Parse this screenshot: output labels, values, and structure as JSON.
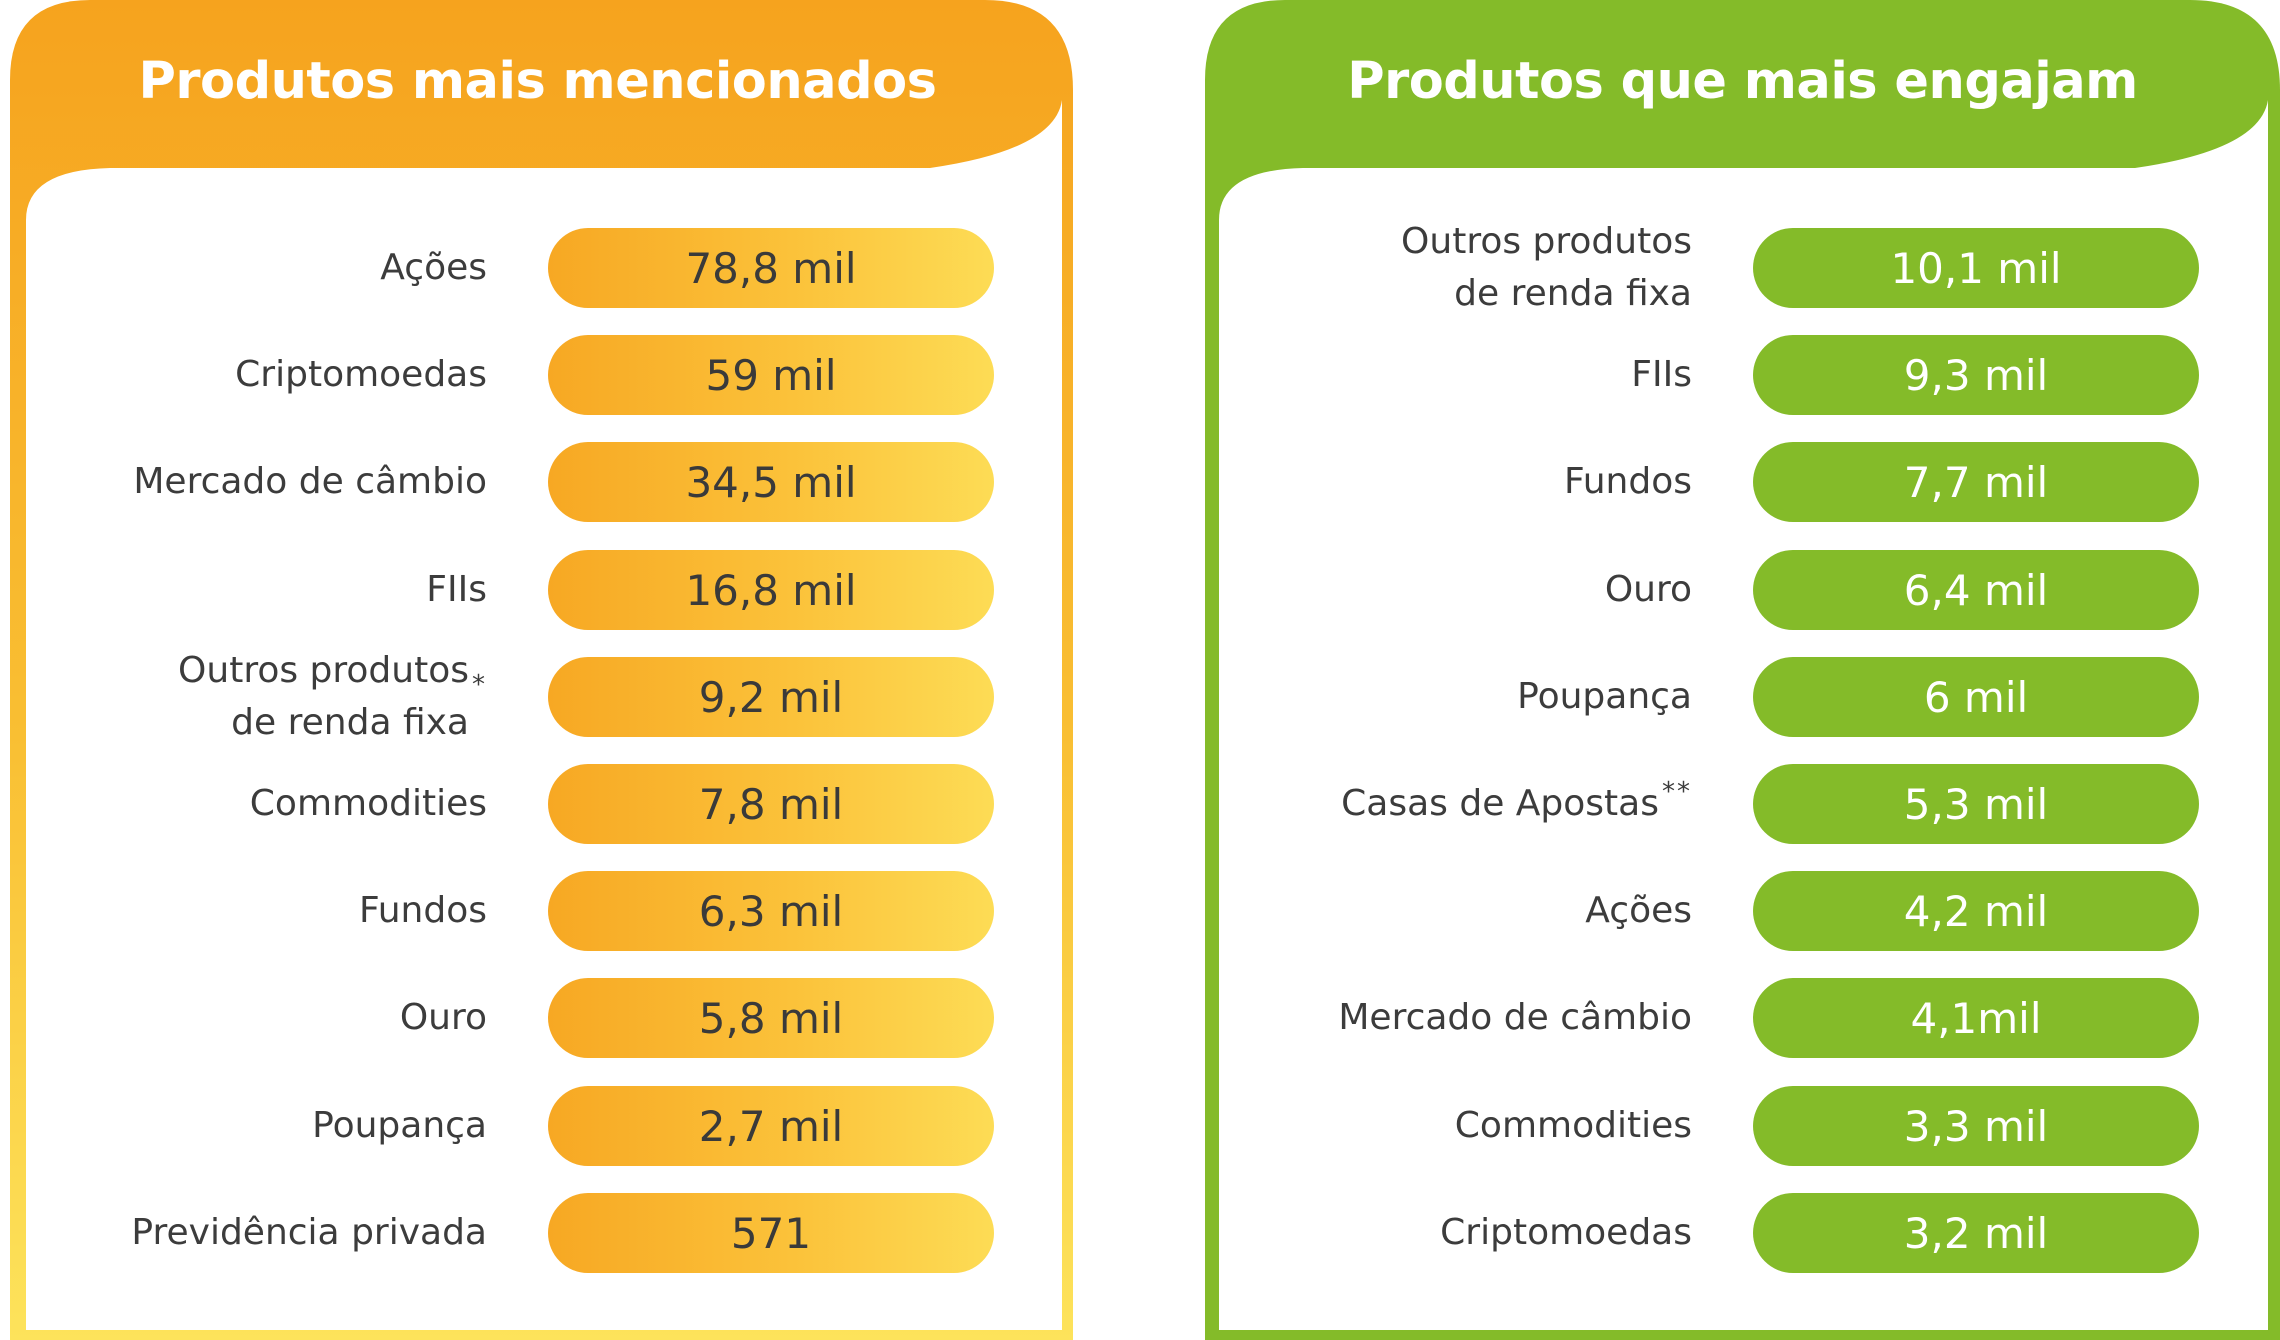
{
  "colors": {
    "orange": "#f6a31e",
    "yellow": "#fde35b",
    "green": "#84bb29",
    "text": "#3c3c3c"
  },
  "left_panel": {
    "title": "Produtos mais mencionados",
    "items": [
      {
        "label": "Ações",
        "note": "",
        "value": "78,8 mil"
      },
      {
        "label": "Criptomoedas",
        "note": "",
        "value": "59 mil"
      },
      {
        "label": "Mercado de câmbio",
        "note": "",
        "value": "34,5 mil"
      },
      {
        "label": "FIIs",
        "note": "",
        "value": "16,8 mil"
      },
      {
        "label": "Outros produtos\nde renda fixa",
        "note": "*",
        "value": "9,2 mil"
      },
      {
        "label": "Commodities",
        "note": "",
        "value": "7,8 mil"
      },
      {
        "label": "Fundos",
        "note": "",
        "value": "6,3 mil"
      },
      {
        "label": "Ouro",
        "note": "",
        "value": "5,8 mil"
      },
      {
        "label": "Poupança",
        "note": "",
        "value": "2,7 mil"
      },
      {
        "label": "Previdência privada",
        "note": "",
        "value": "571"
      }
    ]
  },
  "right_panel": {
    "title": "Produtos que mais engajam",
    "items": [
      {
        "label": "Outros produtos\nde renda fixa",
        "note": "",
        "value": "10,1 mil"
      },
      {
        "label": "FIIs",
        "note": "",
        "value": "9,3 mil"
      },
      {
        "label": "Fundos",
        "note": "",
        "value": "7,7 mil"
      },
      {
        "label": "Ouro",
        "note": "",
        "value": "6,4 mil"
      },
      {
        "label": "Poupança",
        "note": "",
        "value": "6 mil"
      },
      {
        "label": "Casas de Apostas",
        "note": "**",
        "value": "5,3 mil"
      },
      {
        "label": "Ações",
        "note": "",
        "value": "4,2 mil"
      },
      {
        "label": "Mercado de câmbio",
        "note": "",
        "value": "4,1mil"
      },
      {
        "label": "Commodities",
        "note": "",
        "value": "3,3 mil"
      },
      {
        "label": "Criptomoedas",
        "note": "",
        "value": "3,2 mil"
      }
    ]
  }
}
